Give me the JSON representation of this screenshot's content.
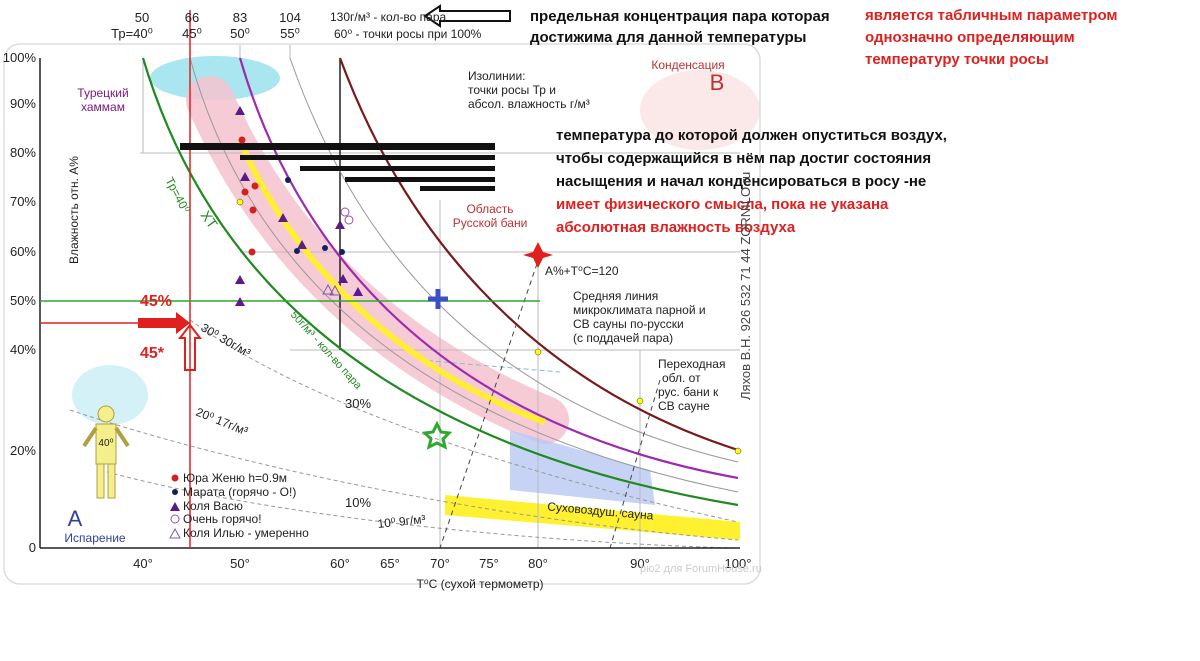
{
  "top_scale": [
    {
      "top": "50",
      "bottom": "Тр=40⁰"
    },
    {
      "top": "66",
      "bottom": "45⁰"
    },
    {
      "top": "83",
      "bottom": "50⁰"
    },
    {
      "top": "104",
      "bottom": "55⁰"
    }
  ],
  "top_scale_notes": [
    "130г/м³ - кол-во пара",
    "60⁰ - точки росы при 100%"
  ],
  "notes": {
    "saturation": [
      "предельная концентрация пара которая",
      "достижима для данной температуры"
    ],
    "table": [
      "является табличным параметром",
      "однозначно определяющим",
      "температуру точки росы"
    ],
    "dewpoint": [
      "температура до которой должен опуститься воздух,",
      "чтобы содержащийся в нём пар достиг состояния",
      "насыщения и начал конденсироваться в росу -не",
      "имеет физического смысла, пока не указана",
      "абсолютная влажность воздуха"
    ]
  },
  "y_ticks": [
    "100%",
    "90%",
    "80%",
    "70%",
    "60%",
    "50%",
    "40%",
    "20%",
    "0"
  ],
  "y_label": "Влажность отн. А%",
  "x_ticks": [
    "40°",
    "50°",
    "60°",
    "65°",
    "70°",
    "75°",
    "80°",
    "90°",
    "100°"
  ],
  "x_label": "T⁰C (сухой термометр)",
  "labels": {
    "turkish": [
      "Турецкий",
      "хаммам"
    ],
    "condensation": "Конденсация",
    "b": "B",
    "isolines": [
      "Изолинии:",
      "точки росы Тр и",
      "абсол. влажность г/м³"
    ],
    "russian": [
      "Область",
      "Русской бани"
    ],
    "sum": "A%+T⁰C=120",
    "average": [
      "Средняя линия",
      "микроклимата парной и",
      "СВ сауны по-русски",
      "(с поддачей пара)"
    ],
    "transition": [
      "Переходная",
      "обл. от",
      "рус. бани к",
      "СВ сауне"
    ],
    "tp40": "Тр=40⁰",
    "xt": "ХТ",
    "steam50": "50г/м³ - кол-во пара",
    "iso30": "30⁰ 30г/м³",
    "iso20": "20⁰ 17г/м³",
    "iso10": "10⁰ 9г/м³",
    "pct30": "30%",
    "pct10": "10%",
    "pct45": "45%",
    "star45": "45*",
    "figure": "40⁰",
    "a": "A",
    "evaporation": "Испарение",
    "dry": "Суховоздуш. сауна"
  },
  "legend": [
    "Юра Женю h=0.9м",
    "Марата (горячо - О!)",
    "Коля Васю",
    "Очень горячо!",
    "Коля Илью - умеренно"
  ],
  "author": "Ляхов В.Н.   926 532 71 44   ZORNILO.ru",
  "watermark": "рю2 для ForumHouse.ru"
}
